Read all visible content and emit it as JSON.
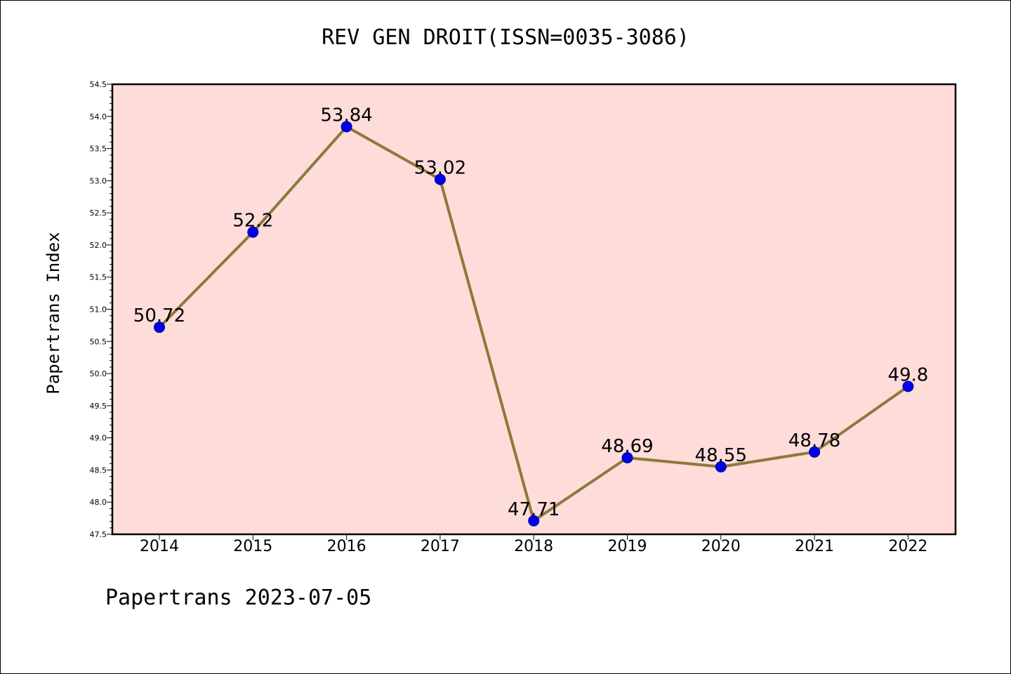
{
  "title": "REV GEN DROIT(ISSN=0035-3086)",
  "footer": "Papertrans 2023-07-05",
  "colors": {
    "plot_background": "#fddcda",
    "line": "#8b7a3a",
    "marker": "#0000ee"
  },
  "chart_data": {
    "type": "line",
    "title": "REV GEN DROIT(ISSN=0035-3086)",
    "xlabel": "",
    "ylabel": "Papertrans Index",
    "categories": [
      "2014",
      "2015",
      "2016",
      "2017",
      "2018",
      "2019",
      "2020",
      "2021",
      "2022"
    ],
    "series": [
      {
        "values": [
          50.72,
          52.2,
          53.84,
          53.02,
          47.71,
          48.69,
          48.55,
          48.78,
          49.8
        ],
        "labels": [
          "50.72",
          "52.2",
          "53.84",
          "53.02",
          "47.71",
          "48.69",
          "48.55",
          "48.78",
          "49.8"
        ]
      }
    ],
    "ylim": [
      47.5,
      54.5
    ],
    "yticks": [
      "47.5",
      "48.0",
      "48.5",
      "49.0",
      "49.5",
      "50.0",
      "50.5",
      "51.0",
      "51.5",
      "52.0",
      "52.5",
      "53.0",
      "53.5",
      "54.0",
      "54.5"
    ],
    "grid": false,
    "legend": "none"
  }
}
